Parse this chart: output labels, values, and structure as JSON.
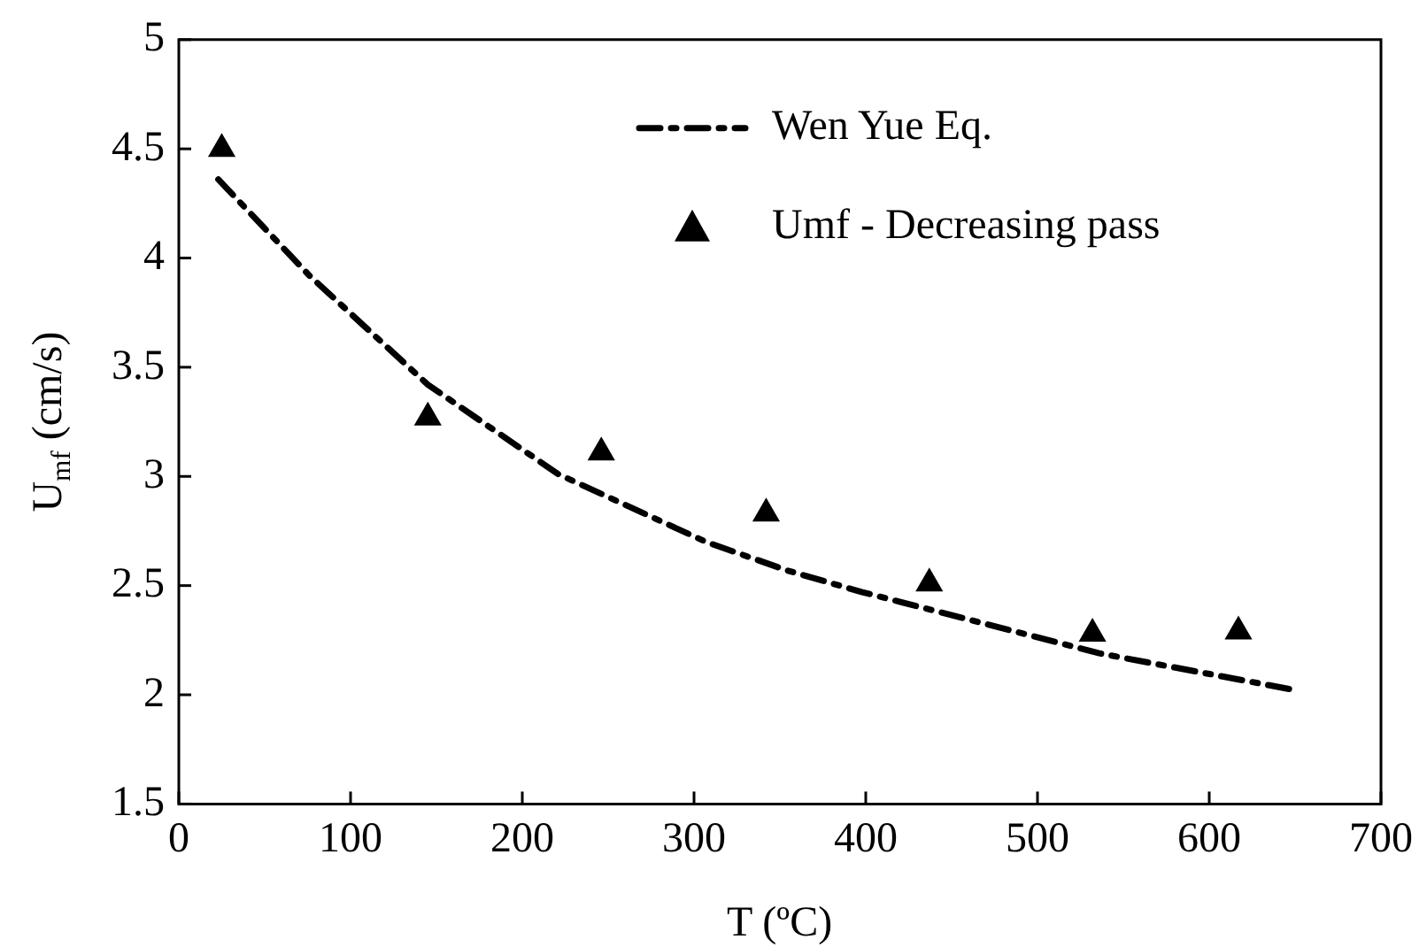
{
  "chart_data": {
    "type": "scatter",
    "xlabel": "T (ºC)",
    "ylabel": "U$_{mf}$ (cm/s)",
    "xlim": [
      0,
      700
    ],
    "xticks": [
      0,
      100,
      200,
      300,
      400,
      500,
      600,
      700
    ],
    "ylim": [
      1.5,
      5
    ],
    "yticks": [
      1.5,
      2,
      2.5,
      3,
      3.5,
      4,
      4.5,
      5
    ],
    "grid": false,
    "legend": "top right",
    "series": [
      {
        "name": "Wen Yue Eq.",
        "type": "line",
        "color": "#000000",
        "line_style": "dashed",
        "marker": "none",
        "x": [
          23,
          76,
          145,
          221,
          307,
          354,
          398,
          536,
          651
        ],
        "values": [
          4.36,
          3.92,
          3.42,
          3.01,
          2.7,
          2.57,
          2.47,
          2.19,
          2.02
        ]
      },
      {
        "name": "Umf - Decreasing pass",
        "type": "scatter",
        "color": "#000000",
        "marker": "triangle",
        "x": [
          25,
          145,
          246,
          342,
          437,
          532,
          617
        ],
        "values": [
          4.5,
          3.27,
          3.11,
          2.83,
          2.51,
          2.28,
          2.29
        ]
      }
    ]
  }
}
